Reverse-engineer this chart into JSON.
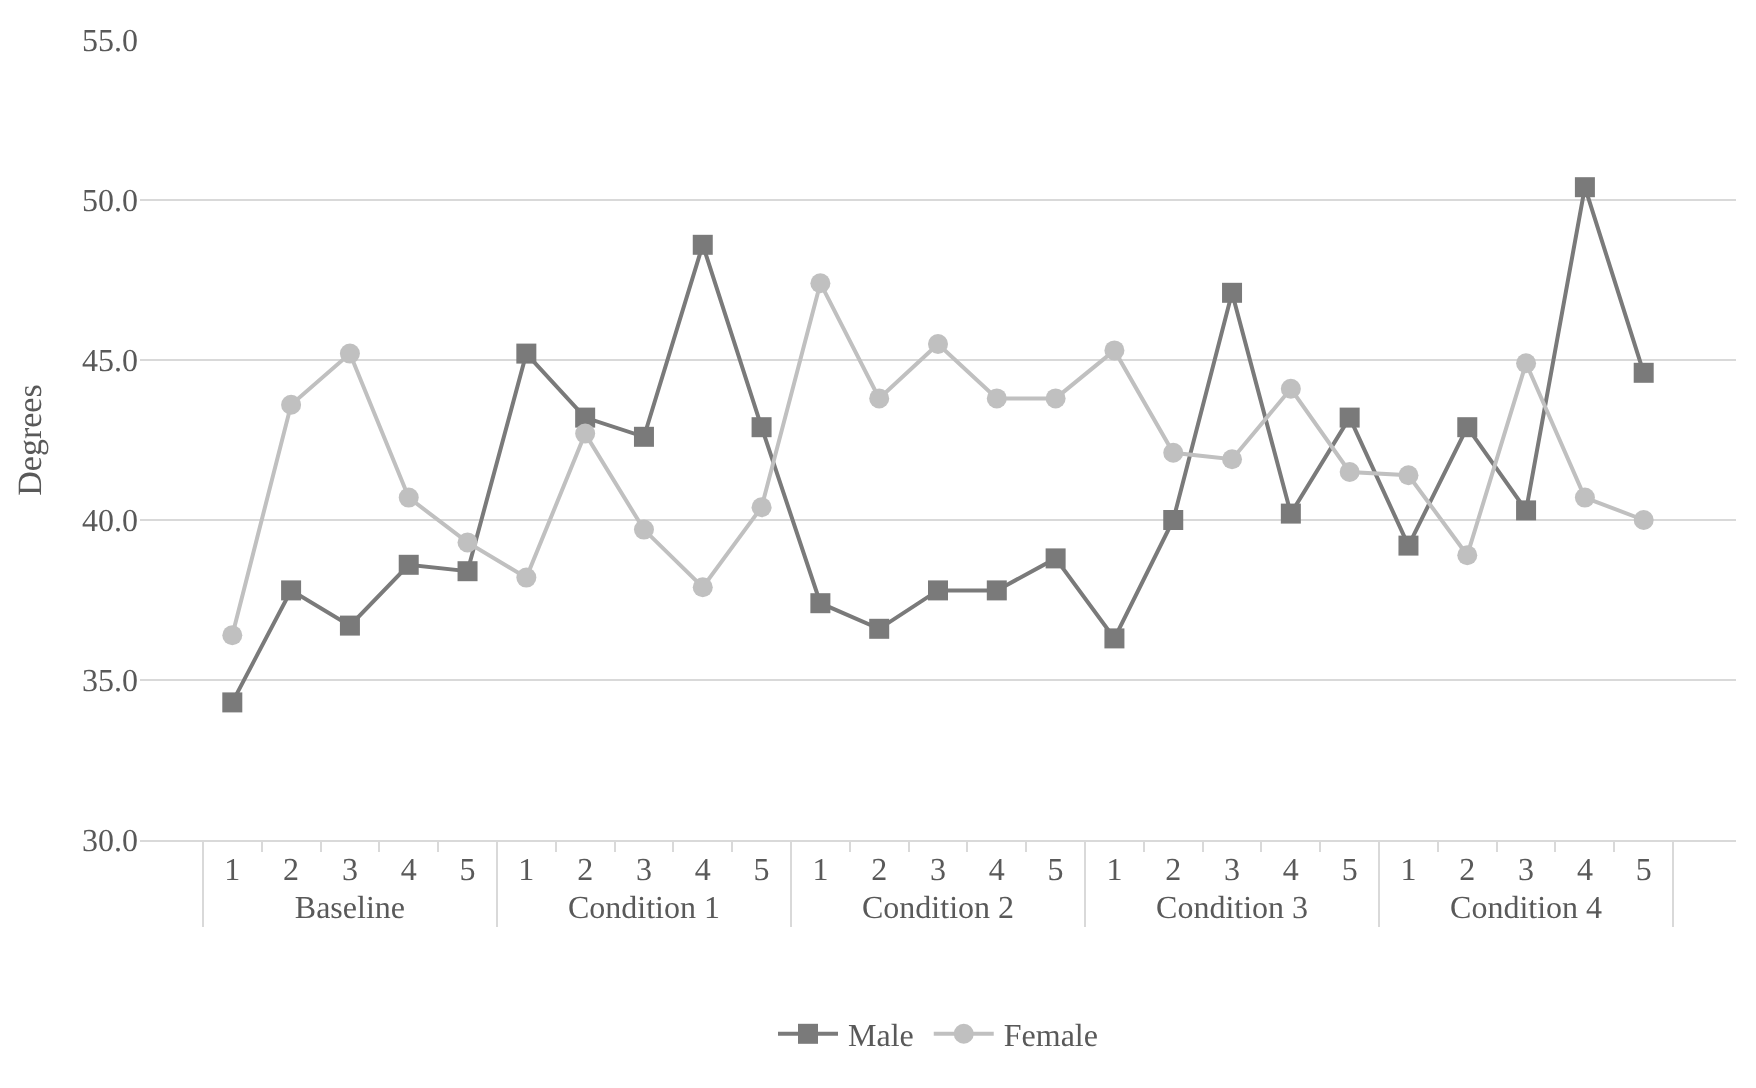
{
  "chart_data": {
    "type": "line",
    "ylabel": "Degrees",
    "categories": [
      "1",
      "2",
      "3",
      "4",
      "5",
      "1",
      "2",
      "3",
      "4",
      "5",
      "1",
      "2",
      "3",
      "4",
      "5",
      "1",
      "2",
      "3",
      "4",
      "5",
      "1",
      "2",
      "3",
      "4",
      "5"
    ],
    "annotations": [
      "Baseline",
      "Condition 1",
      "Condition 2",
      "Condition 3",
      "Condition 4"
    ],
    "series": [
      {
        "name": "Male",
        "color": "#7a7a7a",
        "marker": "square",
        "values": [
          34.3,
          37.8,
          36.7,
          38.6,
          38.4,
          45.2,
          43.2,
          42.6,
          48.6,
          42.9,
          37.4,
          36.6,
          37.8,
          37.8,
          38.8,
          36.3,
          40.0,
          47.1,
          40.2,
          43.2,
          39.2,
          42.9,
          40.3,
          50.4,
          44.6
        ]
      },
      {
        "name": "Female",
        "color": "#c0c0c0",
        "marker": "circle",
        "values": [
          36.4,
          43.6,
          45.2,
          40.7,
          39.3,
          38.2,
          42.7,
          39.7,
          37.9,
          40.4,
          47.4,
          43.8,
          45.5,
          43.8,
          43.8,
          45.3,
          42.1,
          41.9,
          44.1,
          41.5,
          41.4,
          38.9,
          44.9,
          40.7,
          40.0
        ]
      }
    ],
    "ylim": [
      30,
      55
    ],
    "yticks": [
      {
        "value": 30,
        "label": "30.0"
      },
      {
        "value": 35,
        "label": "35.0"
      },
      {
        "value": 40,
        "label": "40.0"
      },
      {
        "value": 45,
        "label": "45.0"
      },
      {
        "value": 50,
        "label": "50.0"
      },
      {
        "value": 55,
        "label": "55.0"
      }
    ],
    "grid": "y",
    "legend": "bottom"
  }
}
